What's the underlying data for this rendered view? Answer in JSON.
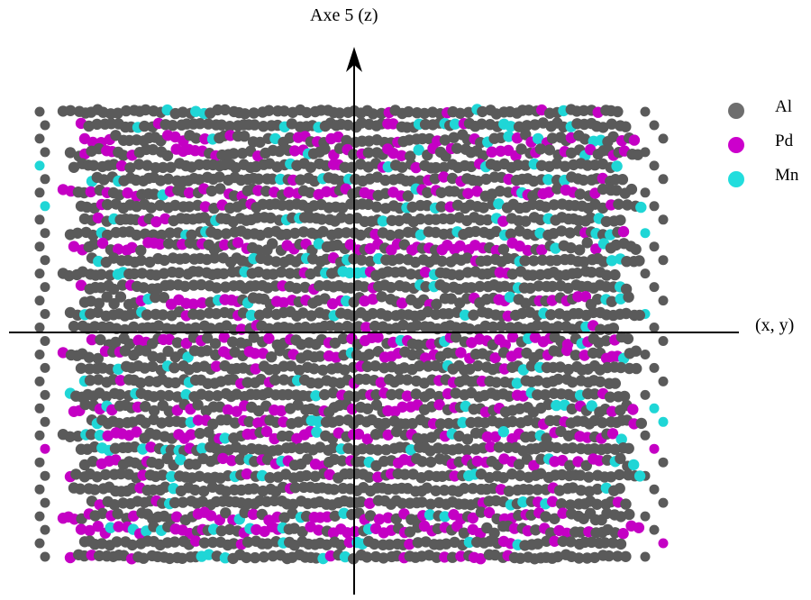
{
  "axes": {
    "vertical_label": "Axe 5 (z)",
    "horizontal_label": "(x, y)"
  },
  "legend": {
    "items": [
      {
        "label": "Al",
        "color": "#6e6e6e"
      },
      {
        "label": "Pd",
        "color": "#cc00cc"
      },
      {
        "label": "Mn",
        "color": "#22dddd"
      }
    ]
  },
  "colors": {
    "aluminium": "#5a5a5a",
    "palladium": "#c400c4",
    "manganese": "#1fd6d6",
    "axis_line": "#000000"
  },
  "structure": {
    "description_type": "atomic-layer-projection",
    "atomic_layers": 34,
    "species": [
      "Al",
      "Pd",
      "Mn"
    ]
  }
}
